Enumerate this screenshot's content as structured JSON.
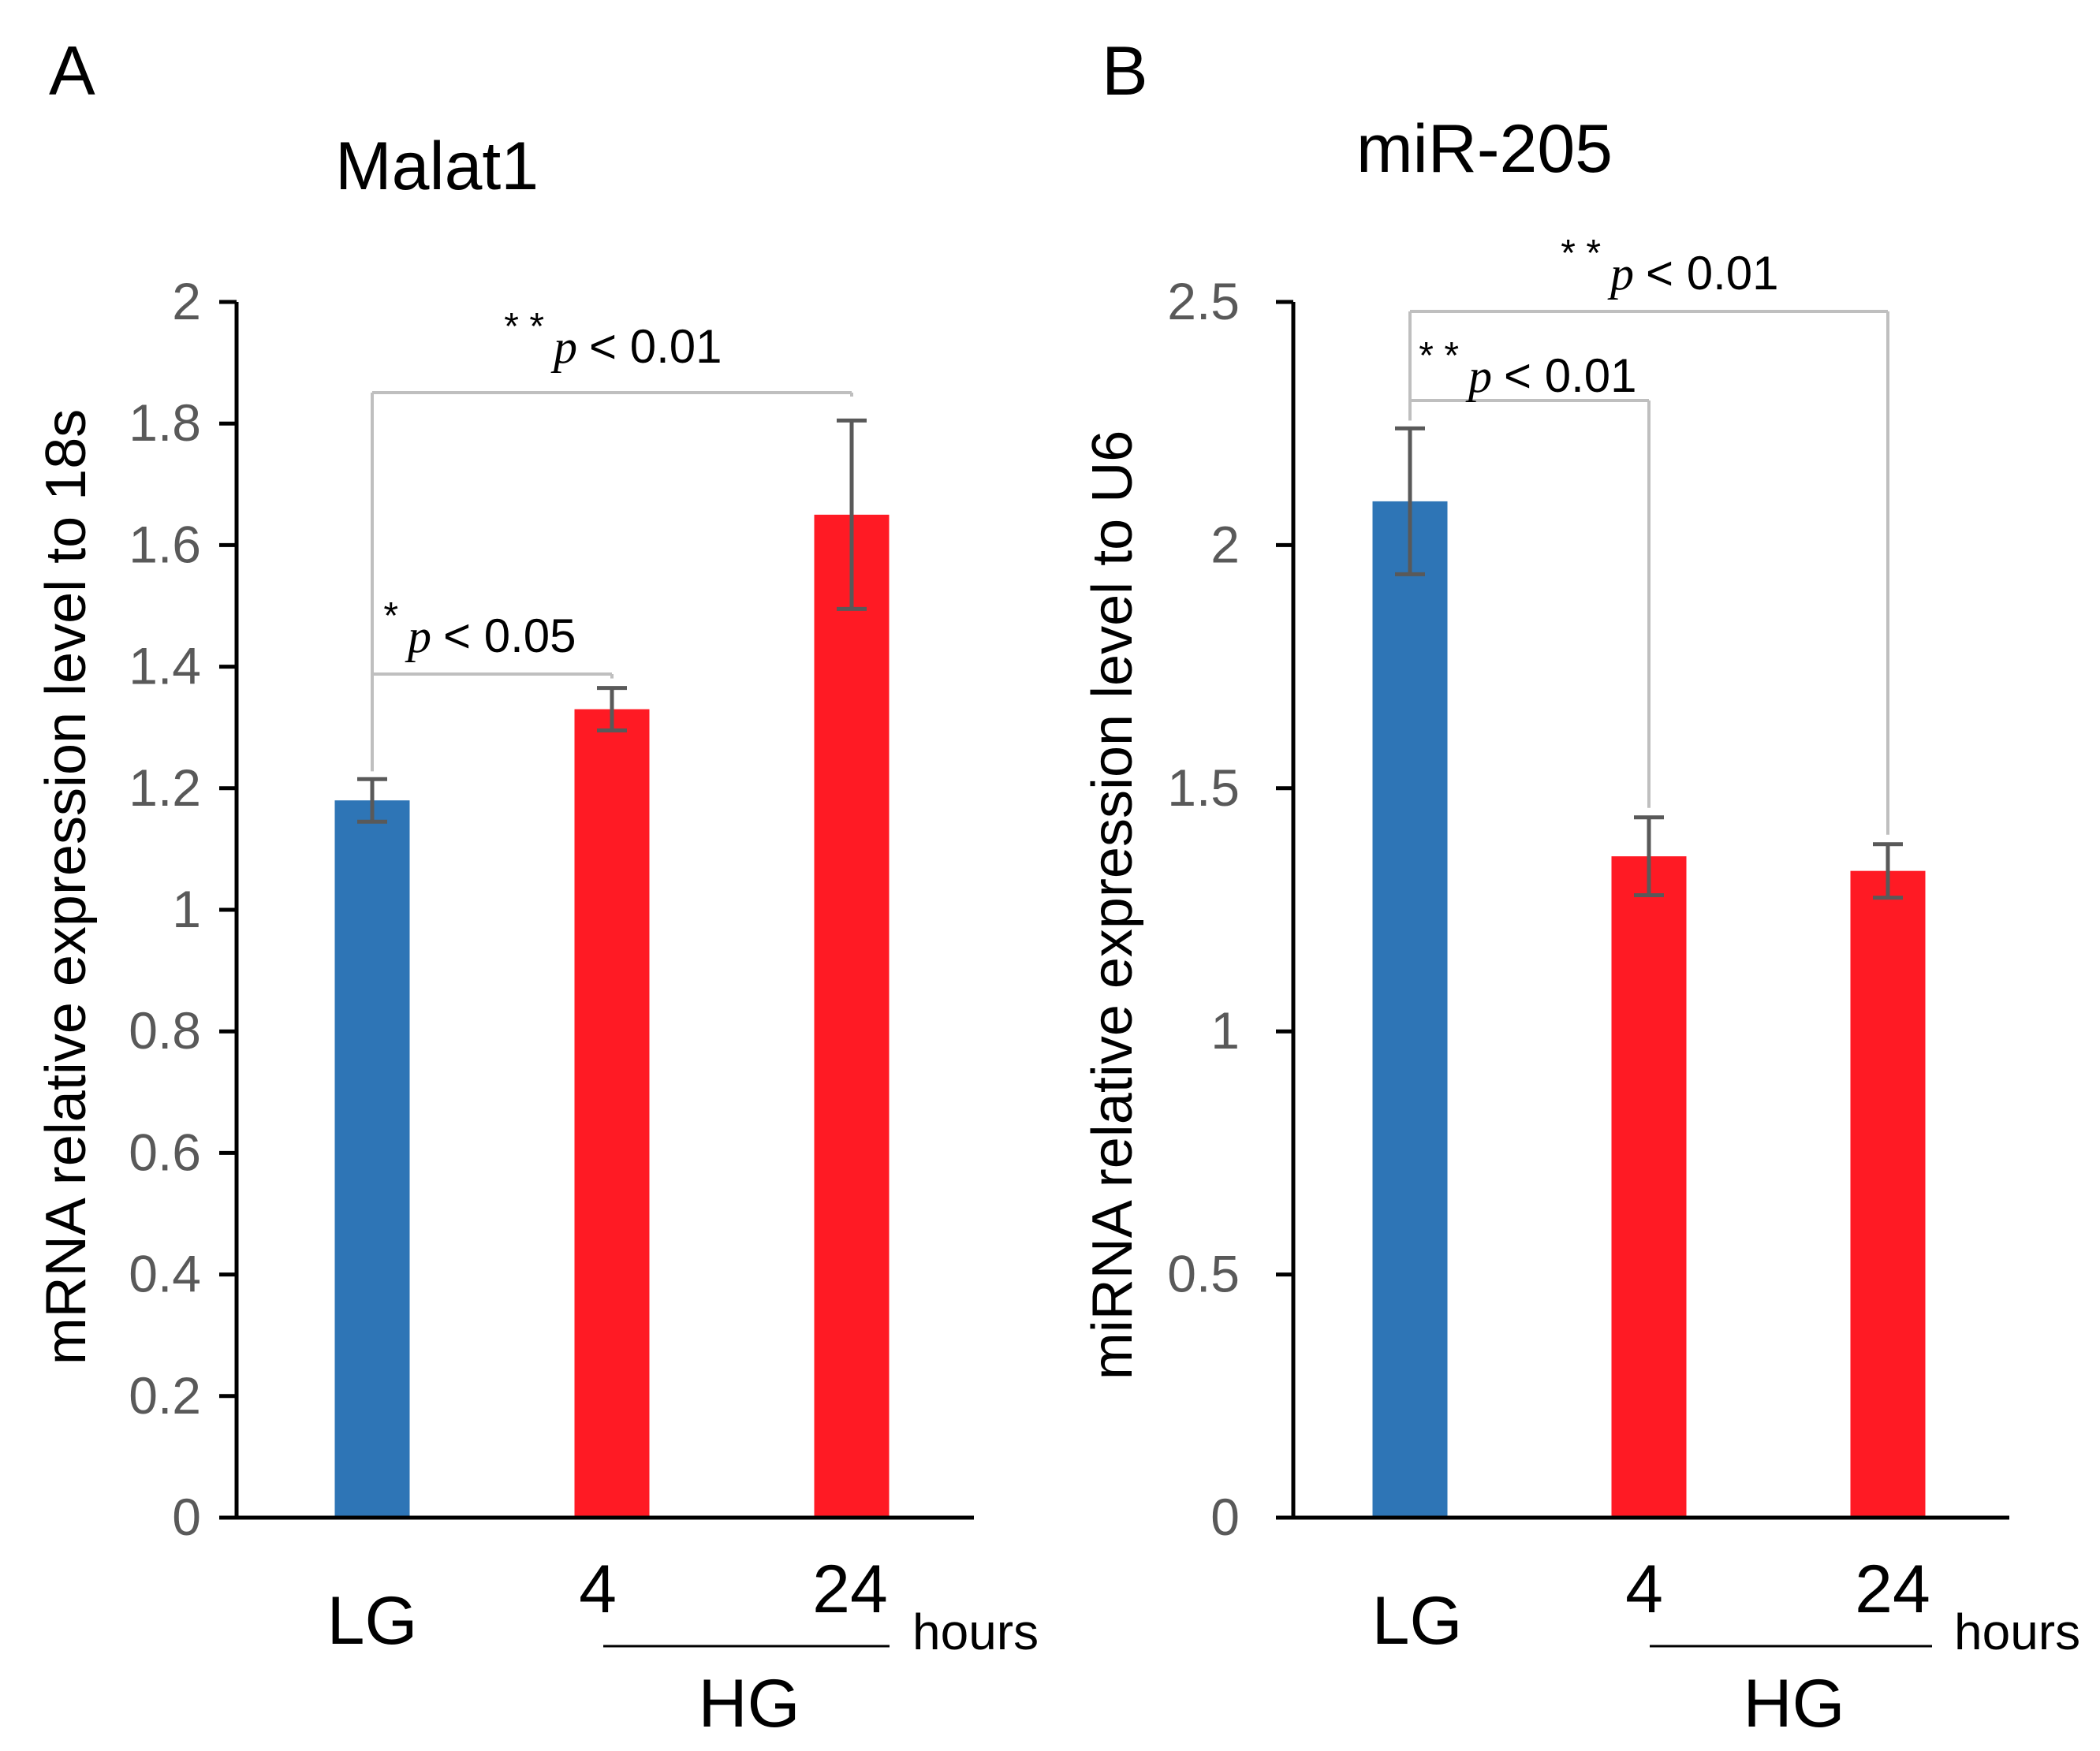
{
  "chart_data": [
    {
      "panel": "A",
      "type": "bar",
      "title": "Malat1",
      "ylabel": "mRNA relative expression level to 18s",
      "xlabel": "",
      "ylim": [
        0,
        2
      ],
      "yticks": [
        "0",
        "0.2",
        "0.4",
        "0.6",
        "0.8",
        "1",
        "1.2",
        "1.4",
        "1.6",
        "1.8",
        "2"
      ],
      "categories": [
        "LG",
        "4",
        "24"
      ],
      "values": [
        1.18,
        1.33,
        1.65
      ],
      "errors": [
        0.035,
        0.035,
        0.155
      ],
      "colors": [
        "#2e75b6",
        "#ff1a24",
        "#ff1a24"
      ],
      "group_label": "HG",
      "unit_label": "hours",
      "comparisons": [
        {
          "from": 0,
          "to": 1,
          "stars": "*",
          "label": "p < 0.05"
        },
        {
          "from": 0,
          "to": 2,
          "stars": "* *",
          "label": "p < 0.01"
        }
      ]
    },
    {
      "panel": "B",
      "type": "bar",
      "title": "miR-205",
      "ylabel": "miRNA relative expression level to U6",
      "xlabel": "",
      "ylim": [
        0,
        2.5
      ],
      "yticks": [
        "0",
        "0.5",
        "1",
        "1.5",
        "2",
        "2.5"
      ],
      "categories": [
        "LG",
        "4",
        "24"
      ],
      "values": [
        2.09,
        1.36,
        1.33
      ],
      "errors": [
        0.15,
        0.08,
        0.055
      ],
      "colors": [
        "#2e75b6",
        "#ff1a24",
        "#ff1a24"
      ],
      "group_label": "HG",
      "unit_label": "hours",
      "comparisons": [
        {
          "from": 0,
          "to": 1,
          "stars": "* *",
          "label": "p < 0.01"
        },
        {
          "from": 0,
          "to": 2,
          "stars": "* *",
          "label": "p < 0.01"
        }
      ]
    }
  ]
}
